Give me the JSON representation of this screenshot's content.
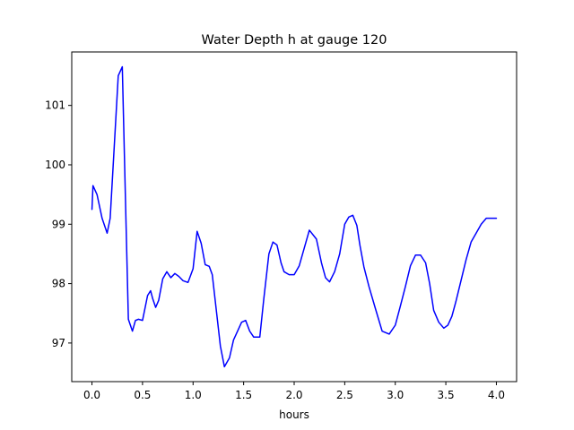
{
  "chart_data": {
    "type": "line",
    "title": "Water Depth h at gauge 120",
    "xlabel": "hours",
    "ylabel": "",
    "xlim": [
      -0.2,
      4.2
    ],
    "ylim": [
      96.35,
      101.9
    ],
    "xticks": [
      0.0,
      0.5,
      1.0,
      1.5,
      2.0,
      2.5,
      3.0,
      3.5,
      4.0
    ],
    "xtick_labels": [
      "0.0",
      "0.5",
      "1.0",
      "1.5",
      "2.0",
      "2.5",
      "3.0",
      "3.5",
      "4.0"
    ],
    "yticks": [
      97,
      98,
      99,
      100,
      101
    ],
    "ytick_labels": [
      "97",
      "98",
      "99",
      "100",
      "101"
    ],
    "grid": false,
    "line_color": "#0000ff",
    "series": [
      {
        "x": [
          0.0,
          0.01,
          0.05,
          0.1,
          0.15,
          0.18,
          0.22,
          0.26,
          0.3,
          0.33,
          0.36,
          0.4,
          0.43,
          0.46,
          0.5,
          0.55,
          0.58,
          0.6,
          0.63,
          0.66,
          0.7,
          0.74,
          0.78,
          0.82,
          0.86,
          0.9,
          0.95,
          1.0,
          1.04,
          1.08,
          1.12,
          1.16,
          1.19,
          1.23,
          1.27,
          1.31,
          1.36,
          1.4,
          1.44,
          1.48,
          1.52,
          1.56,
          1.6,
          1.66,
          1.7,
          1.75,
          1.79,
          1.83,
          1.87,
          1.9,
          1.95,
          2.0,
          2.05,
          2.1,
          2.15,
          2.22,
          2.27,
          2.31,
          2.35,
          2.4,
          2.45,
          2.5,
          2.54,
          2.58,
          2.62,
          2.65,
          2.69,
          2.74,
          2.8,
          2.87,
          2.94,
          3.0,
          3.05,
          3.1,
          3.15,
          3.2,
          3.25,
          3.3,
          3.34,
          3.38,
          3.43,
          3.48,
          3.52,
          3.56,
          3.6,
          3.65,
          3.7,
          3.75,
          3.8,
          3.85,
          3.9,
          3.95,
          4.0
        ],
        "y": [
          99.25,
          99.65,
          99.5,
          99.1,
          98.85,
          99.1,
          100.3,
          101.5,
          101.65,
          99.5,
          97.4,
          97.2,
          97.38,
          97.4,
          97.38,
          97.8,
          97.88,
          97.75,
          97.6,
          97.72,
          98.08,
          98.2,
          98.1,
          98.17,
          98.12,
          98.05,
          98.02,
          98.25,
          98.88,
          98.68,
          98.32,
          98.29,
          98.15,
          97.55,
          96.95,
          96.6,
          96.75,
          97.05,
          97.2,
          97.35,
          97.38,
          97.2,
          97.1,
          97.1,
          97.75,
          98.5,
          98.7,
          98.65,
          98.35,
          98.2,
          98.15,
          98.15,
          98.3,
          98.6,
          98.9,
          98.75,
          98.35,
          98.1,
          98.03,
          98.2,
          98.5,
          99.0,
          99.12,
          99.15,
          98.98,
          98.65,
          98.28,
          97.95,
          97.6,
          97.2,
          97.15,
          97.3,
          97.62,
          97.95,
          98.3,
          98.48,
          98.48,
          98.35,
          98.0,
          97.55,
          97.35,
          97.25,
          97.3,
          97.45,
          97.7,
          98.05,
          98.4,
          98.7,
          98.85,
          99.0,
          99.1,
          99.1,
          99.1
        ]
      }
    ]
  }
}
